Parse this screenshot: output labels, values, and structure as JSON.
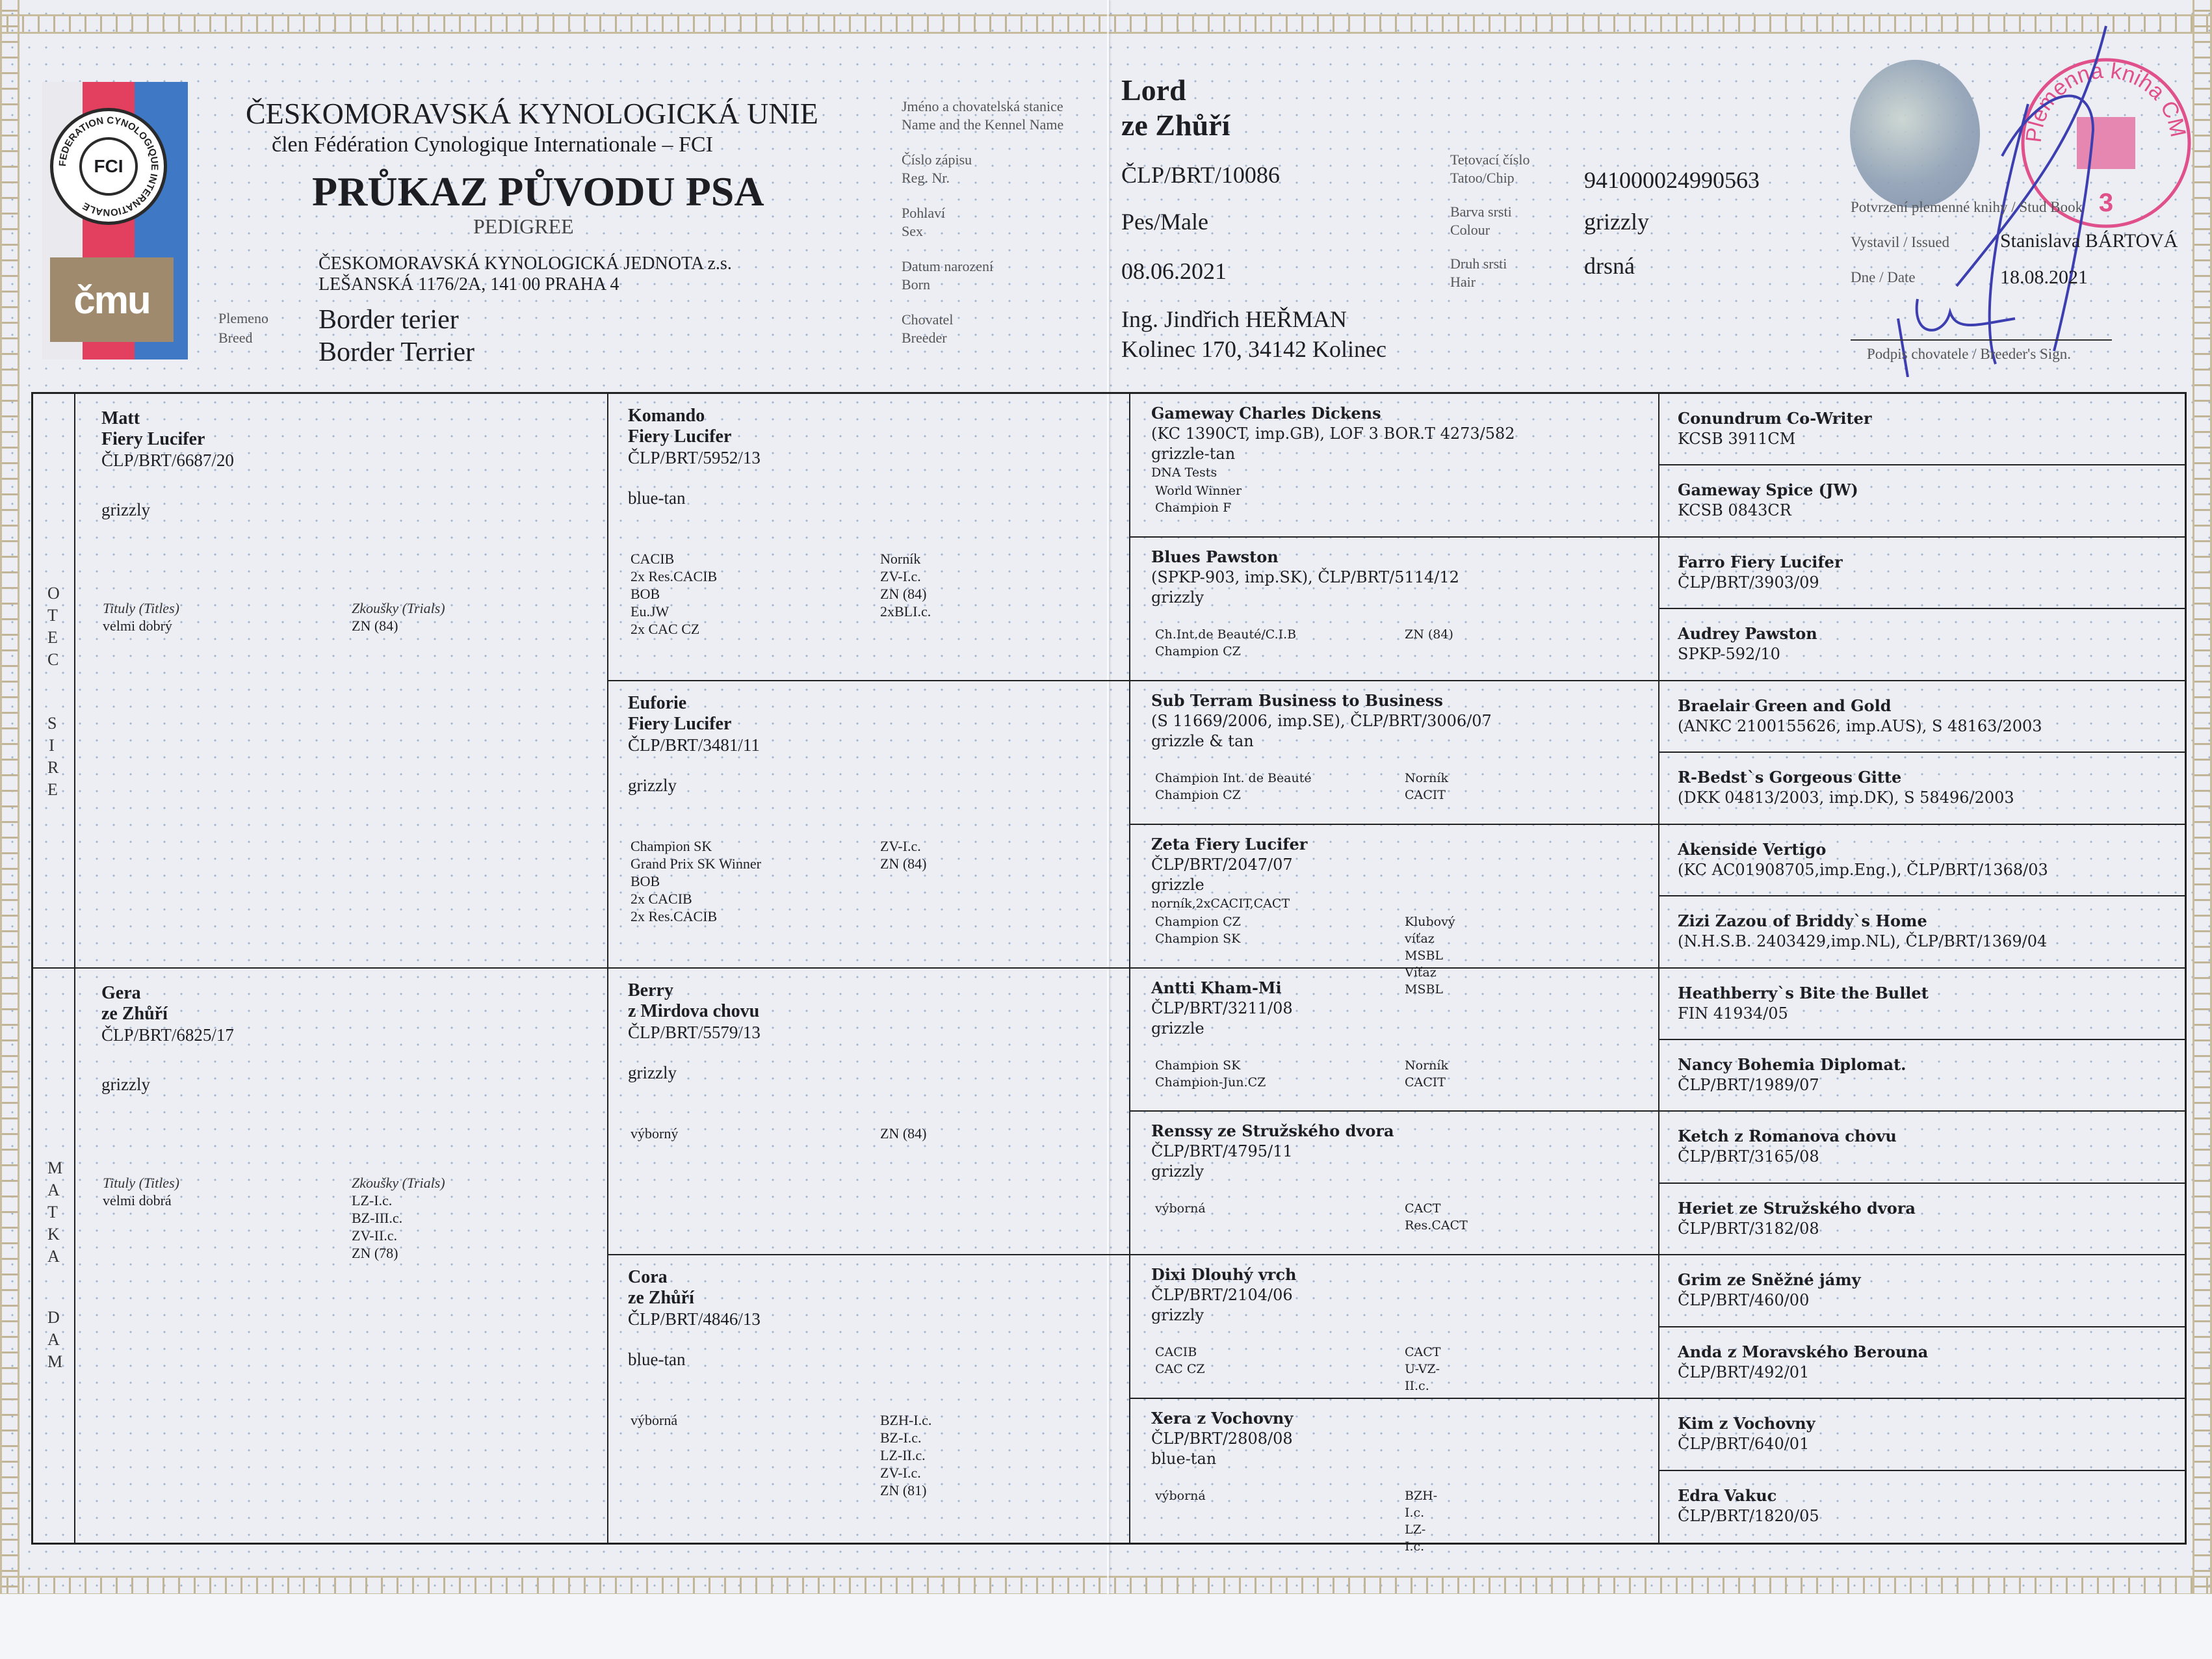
{
  "header": {
    "union": "ČESKOMORAVSKÁ KYNOLOGICKÁ UNIE",
    "member": "člen Fédération Cynologique Internationale – FCI",
    "title": "PRŮKAZ PŮVODU PSA",
    "subtitle": "PEDIGREE",
    "club": "ČESKOMORAVSKÁ KYNOLOGICKÁ JEDNOTA z.s.",
    "address": "LEŠANSKÁ 1176/2A, 141 00 PRAHA 4",
    "breed_label_cz": "Plemeno",
    "breed_label_en": "Breed",
    "breed_cz": "Border terier",
    "breed_en": "Border Terrier"
  },
  "logo": {
    "fci": "FCI",
    "ring": "FEDERATION CYNOLOGIQUE INTERNATIONALE",
    "cmku": "čmu",
    "colors": {
      "red": "#e2405e",
      "blue": "#3f78c4",
      "brown": "#a08a6e"
    }
  },
  "dog": {
    "name_label_cz": "Jméno a chovatelská stanice",
    "name_label_en": "Name and the Kennel Name",
    "name_line1": "Lord",
    "name_line2": "ze Zhůří",
    "reg_label_cz": "Číslo zápisu",
    "reg_label_en": "Reg. Nr.",
    "reg": "ČLP/BRT/10086",
    "sex_label_cz": "Pohlaví",
    "sex_label_en": "Sex",
    "sex": "Pes/Male",
    "born_label_cz": "Datum narození",
    "born_label_en": "Born",
    "born": "08.06.2021",
    "breeder_label_cz": "Chovatel",
    "breeder_label_en": "Breeder",
    "breeder_name": "Ing. Jindřich HEŘMAN",
    "breeder_address": "Kolinec 170, 34142 Kolinec",
    "chip_label_cz": "Tetovací číslo",
    "chip_label_en": "Tatoo/Chip",
    "chip": "941000024990563",
    "colour_label_cz": "Barva srsti",
    "colour_label_en": "Colour",
    "colour": "grizzly",
    "hair_label_cz": "Druh srsti",
    "hair_label_en": "Hair",
    "hair": "drsná"
  },
  "studbook": {
    "confirm_label": "Potvrzení plemenné knihy / Stud Book",
    "issued_label": "Vystavil / Issued",
    "issued_by": "Stanislava BÁRTOVÁ",
    "date_label": "Dne / Date",
    "date": "18.08.2021",
    "breeder_sign_label": "Podpis chovatele / Breeder's Sign."
  },
  "stamp": {
    "text": "Plemenná kniha ČMKU",
    "number": "3",
    "color": "#e0508a"
  },
  "pedigree": {
    "side_labels": {
      "sire_cz": "OTEC",
      "sire_en": "SIRE",
      "dam_cz": "MATKA",
      "dam_en": "DAM"
    },
    "titles_label": "Tituly (Titles)",
    "trials_label": "Zkoušky (Trials)",
    "parents": [
      {
        "name_lines": [
          "Matt",
          "Fiery Lucifer"
        ],
        "reg": "ČLP/BRT/6687/20",
        "colour": "grizzly",
        "titles": [
          "velmi dobrý"
        ],
        "trials": [
          "ZN (84)"
        ]
      },
      {
        "name_lines": [
          "Gera",
          "ze Zhůří"
        ],
        "reg": "ČLP/BRT/6825/17",
        "colour": "grizzly",
        "titles": [
          "velmi dobrá"
        ],
        "trials": [
          "LZ-I.c.",
          "BZ-III.c.",
          "ZV-II.c.",
          "ZN (78)"
        ]
      }
    ],
    "grandparents": [
      {
        "name_lines": [
          "Komando",
          "Fiery Lucifer"
        ],
        "reg": "ČLP/BRT/5952/13",
        "colour": "blue-tan",
        "titles": [
          "CACIB",
          "2x Res.CACIB",
          "BOB",
          "Eu.JW",
          "2x CAC CZ"
        ],
        "trials": [
          "Norník",
          "ZV-I.c.",
          "ZN (84)",
          "2xBLI.c."
        ]
      },
      {
        "name_lines": [
          "Euforie",
          "Fiery Lucifer"
        ],
        "reg": "ČLP/BRT/3481/11",
        "colour": "grizzly",
        "titles": [
          "Champion SK",
          "Grand Prix SK Winner",
          "BOB",
          "2x CACIB",
          "2x Res.CACIB"
        ],
        "trials": [
          "ZV-I.c.",
          "ZN (84)"
        ]
      },
      {
        "name_lines": [
          "Berry",
          "z Mirdova chovu"
        ],
        "reg": "ČLP/BRT/5579/13",
        "colour": "grizzly",
        "titles": [
          "výborný"
        ],
        "trials": [
          "ZN (84)"
        ]
      },
      {
        "name_lines": [
          "Cora",
          "ze Zhůří"
        ],
        "reg": "ČLP/BRT/4846/13",
        "colour": "blue-tan",
        "titles": [
          "výborná"
        ],
        "trials": [
          "BZH-I.c.",
          "BZ-I.c.",
          "LZ-II.c.",
          "ZV-I.c.",
          "ZN (81)"
        ]
      }
    ],
    "great_grandparents": [
      {
        "name": "Gameway Charles Dickens",
        "reg": "(KC 1390CT, imp.GB), LOF 3 BOR.T 4273/582",
        "colour": "grizzle-tan",
        "note": "DNA Tests",
        "titles": [
          "World Winner",
          "Champion F"
        ],
        "trials": []
      },
      {
        "name": "Blues Pawston",
        "reg": "(SPKP-903, imp.SK), ČLP/BRT/5114/12",
        "colour": "grizzly",
        "note": "",
        "titles": [
          "Ch.Int.de Beauté/C.I.B",
          "Champion CZ"
        ],
        "trials": [
          "ZN (84)"
        ]
      },
      {
        "name": "Sub Terram Business to Business",
        "reg": "(S 11669/2006, imp.SE), ČLP/BRT/3006/07",
        "colour": "grizzle & tan",
        "note": "",
        "titles": [
          "Champion Int. de Beauté",
          "Champion CZ"
        ],
        "trials": [
          "Norník",
          "CACIT"
        ]
      },
      {
        "name": "Zeta Fiery Lucifer",
        "reg": "ČLP/BRT/2047/07",
        "colour": "grizzle",
        "note": "norník,2xCACIT,CACT",
        "titles": [
          "Champion CZ",
          "Champion SK"
        ],
        "trials": [
          "Klubový víťaz MSBL",
          "Víťaz MSBL"
        ]
      },
      {
        "name": "Antti Kham-Mi",
        "reg": "ČLP/BRT/3211/08",
        "colour": "grizzle",
        "note": "",
        "titles": [
          "Champion SK",
          "Champion-Jun.CZ"
        ],
        "trials": [
          "Norník",
          "CACIT"
        ]
      },
      {
        "name": "Renssy ze Stružského dvora",
        "reg": "ČLP/BRT/4795/11",
        "colour": "grizzly",
        "note": "",
        "titles": [
          "výborná"
        ],
        "trials": [
          "CACT",
          "Res.CACT"
        ]
      },
      {
        "name": "Dixi Dlouhý vrch",
        "reg": "ČLP/BRT/2104/06",
        "colour": "grizzly",
        "note": "",
        "titles": [
          "CACIB",
          "CAC CZ"
        ],
        "trials": [
          "CACT",
          "U-VZ-II.c."
        ]
      },
      {
        "name": "Xera z Vochovny",
        "reg": "ČLP/BRT/2808/08",
        "colour": "blue-tan",
        "note": "",
        "titles": [
          "výborná"
        ],
        "trials": [
          "BZH-I.c.",
          "LZ-I.c."
        ]
      }
    ],
    "great_great_grandparents": [
      {
        "name": "Conundrum Co-Writer",
        "reg": "KCSB 3911CM"
      },
      {
        "name": "Gameway Spice (JW)",
        "reg": "KCSB 0843CR"
      },
      {
        "name": "Farro Fiery Lucifer",
        "reg": "ČLP/BRT/3903/09"
      },
      {
        "name": "Audrey Pawston",
        "reg": "SPKP-592/10"
      },
      {
        "name": "Braelair Green and Gold",
        "reg": "(ANKC 2100155626, imp.AUS), S 48163/2003"
      },
      {
        "name": "R-Bedst`s Gorgeous Gitte",
        "reg": "(DKK 04813/2003, imp.DK), S 58496/2003"
      },
      {
        "name": "Akenside Vertigo",
        "reg": "(KC AC01908705,imp.Eng.), ČLP/BRT/1368/03"
      },
      {
        "name": "Zizi Zazou of Briddy`s Home",
        "reg": "(N.H.S.B. 2403429,imp.NL), ČLP/BRT/1369/04"
      },
      {
        "name": "Heathberry`s Bite the Bullet",
        "reg": "FIN 41934/05"
      },
      {
        "name": "Nancy Bohemia Diplomat.",
        "reg": "ČLP/BRT/1989/07"
      },
      {
        "name": "Ketch z Romanova chovu",
        "reg": "ČLP/BRT/3165/08"
      },
      {
        "name": "Heriet ze Stružského dvora",
        "reg": "ČLP/BRT/3182/08"
      },
      {
        "name": "Grim ze Sněžné jámy",
        "reg": "ČLP/BRT/460/00"
      },
      {
        "name": "Anda z Moravského Berouna",
        "reg": "ČLP/BRT/492/01"
      },
      {
        "name": "Kim z Vochovny",
        "reg": "ČLP/BRT/640/01"
      },
      {
        "name": "Edra Vakuc",
        "reg": "ČLP/BRT/1820/05"
      }
    ]
  }
}
